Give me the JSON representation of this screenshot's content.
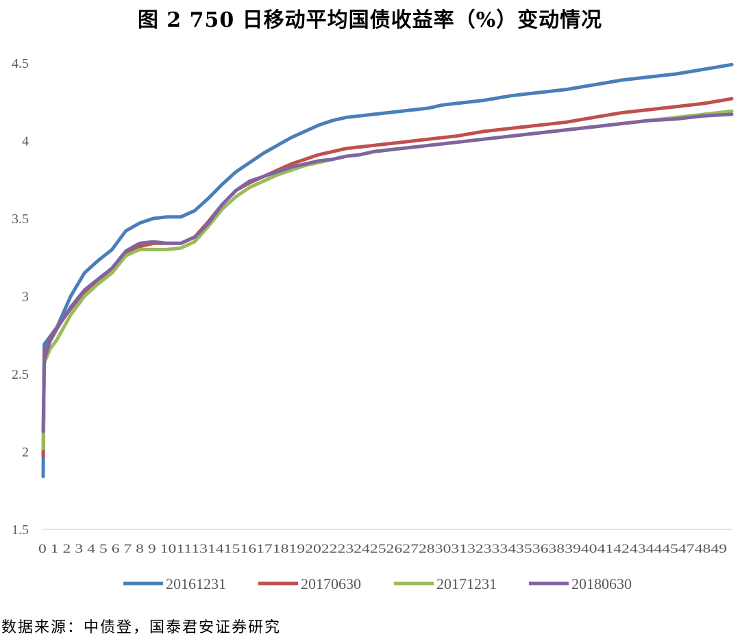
{
  "title": "图 2 750 日移动平均国债收益率（%）变动情况",
  "source": "数据来源：中债登，国泰君安证券研究",
  "chart_data": {
    "type": "line",
    "ylim": [
      1.5,
      4.5
    ],
    "yticks": [
      "4.5",
      "4",
      "3.5",
      "3",
      "2.5",
      "2",
      "1.5"
    ],
    "xlim": [
      0,
      50
    ],
    "xtick_text": "0 1 2 3 4 5 6 7 8 9 1011131415161718192022232425262728303132333435363839404142434445474849",
    "legend_placement": "bottom",
    "grid": false,
    "series": [
      {
        "name": "20161231",
        "color": "#4a7ebb",
        "points": [
          [
            0,
            1.84
          ],
          [
            0.08,
            2.69
          ],
          [
            0.5,
            2.74
          ],
          [
            1,
            2.8
          ],
          [
            2,
            3.0
          ],
          [
            3,
            3.15
          ],
          [
            4,
            3.23
          ],
          [
            5,
            3.3
          ],
          [
            6,
            3.42
          ],
          [
            7,
            3.47
          ],
          [
            8,
            3.5
          ],
          [
            9,
            3.51
          ],
          [
            10,
            3.51
          ],
          [
            11,
            3.55
          ],
          [
            12,
            3.63
          ],
          [
            13,
            3.72
          ],
          [
            14,
            3.8
          ],
          [
            15,
            3.86
          ],
          [
            16,
            3.92
          ],
          [
            17,
            3.97
          ],
          [
            18,
            4.02
          ],
          [
            19,
            4.06
          ],
          [
            20,
            4.1
          ],
          [
            21,
            4.13
          ],
          [
            22,
            4.15
          ],
          [
            23,
            4.16
          ],
          [
            24,
            4.17
          ],
          [
            25,
            4.18
          ],
          [
            26,
            4.19
          ],
          [
            27,
            4.2
          ],
          [
            28,
            4.21
          ],
          [
            29,
            4.23
          ],
          [
            30,
            4.24
          ],
          [
            32,
            4.26
          ],
          [
            34,
            4.29
          ],
          [
            36,
            4.31
          ],
          [
            38,
            4.33
          ],
          [
            40,
            4.36
          ],
          [
            42,
            4.39
          ],
          [
            44,
            4.41
          ],
          [
            46,
            4.43
          ],
          [
            48,
            4.46
          ],
          [
            50,
            4.49
          ]
        ]
      },
      {
        "name": "20170630",
        "color": "#c0504d",
        "points": [
          [
            0,
            1.97
          ],
          [
            0.08,
            2.62
          ],
          [
            0.5,
            2.72
          ],
          [
            1,
            2.8
          ],
          [
            2,
            2.92
          ],
          [
            3,
            3.03
          ],
          [
            4,
            3.1
          ],
          [
            5,
            3.17
          ],
          [
            6,
            3.28
          ],
          [
            7,
            3.32
          ],
          [
            8,
            3.34
          ],
          [
            9,
            3.34
          ],
          [
            10,
            3.34
          ],
          [
            11,
            3.38
          ],
          [
            12,
            3.48
          ],
          [
            13,
            3.59
          ],
          [
            14,
            3.68
          ],
          [
            15,
            3.73
          ],
          [
            16,
            3.77
          ],
          [
            17,
            3.81
          ],
          [
            18,
            3.85
          ],
          [
            19,
            3.88
          ],
          [
            20,
            3.91
          ],
          [
            21,
            3.93
          ],
          [
            22,
            3.95
          ],
          [
            23,
            3.96
          ],
          [
            24,
            3.97
          ],
          [
            25,
            3.98
          ],
          [
            26,
            3.99
          ],
          [
            27,
            4.0
          ],
          [
            28,
            4.01
          ],
          [
            30,
            4.03
          ],
          [
            32,
            4.06
          ],
          [
            34,
            4.08
          ],
          [
            36,
            4.1
          ],
          [
            38,
            4.12
          ],
          [
            40,
            4.15
          ],
          [
            42,
            4.18
          ],
          [
            44,
            4.2
          ],
          [
            46,
            4.22
          ],
          [
            48,
            4.24
          ],
          [
            50,
            4.27
          ]
        ]
      },
      {
        "name": "20171231",
        "color": "#9bbb59",
        "points": [
          [
            0,
            2.02
          ],
          [
            0.08,
            2.57
          ],
          [
            0.5,
            2.66
          ],
          [
            1,
            2.72
          ],
          [
            2,
            2.88
          ],
          [
            3,
            3.0
          ],
          [
            4,
            3.08
          ],
          [
            5,
            3.15
          ],
          [
            6,
            3.26
          ],
          [
            7,
            3.3
          ],
          [
            8,
            3.3
          ],
          [
            9,
            3.3
          ],
          [
            10,
            3.31
          ],
          [
            11,
            3.35
          ],
          [
            12,
            3.45
          ],
          [
            13,
            3.56
          ],
          [
            14,
            3.64
          ],
          [
            15,
            3.7
          ],
          [
            16,
            3.74
          ],
          [
            17,
            3.78
          ],
          [
            18,
            3.81
          ],
          [
            19,
            3.84
          ],
          [
            20,
            3.86
          ],
          [
            21,
            3.88
          ],
          [
            22,
            3.9
          ],
          [
            23,
            3.91
          ],
          [
            24,
            3.93
          ],
          [
            25,
            3.94
          ],
          [
            26,
            3.95
          ],
          [
            27,
            3.96
          ],
          [
            28,
            3.97
          ],
          [
            30,
            3.99
          ],
          [
            32,
            4.01
          ],
          [
            34,
            4.03
          ],
          [
            36,
            4.05
          ],
          [
            38,
            4.07
          ],
          [
            40,
            4.09
          ],
          [
            42,
            4.11
          ],
          [
            44,
            4.13
          ],
          [
            46,
            4.15
          ],
          [
            48,
            4.17
          ],
          [
            50,
            4.19
          ]
        ]
      },
      {
        "name": "20180630",
        "color": "#8064a2",
        "points": [
          [
            0,
            2.13
          ],
          [
            0.08,
            2.59
          ],
          [
            0.5,
            2.71
          ],
          [
            1,
            2.79
          ],
          [
            2,
            2.93
          ],
          [
            3,
            3.04
          ],
          [
            4,
            3.11
          ],
          [
            5,
            3.18
          ],
          [
            6,
            3.29
          ],
          [
            7,
            3.34
          ],
          [
            8,
            3.35
          ],
          [
            9,
            3.34
          ],
          [
            10,
            3.34
          ],
          [
            11,
            3.38
          ],
          [
            12,
            3.47
          ],
          [
            13,
            3.59
          ],
          [
            14,
            3.68
          ],
          [
            15,
            3.74
          ],
          [
            16,
            3.77
          ],
          [
            17,
            3.8
          ],
          [
            18,
            3.83
          ],
          [
            19,
            3.85
          ],
          [
            20,
            3.87
          ],
          [
            21,
            3.88
          ],
          [
            22,
            3.9
          ],
          [
            23,
            3.91
          ],
          [
            24,
            3.93
          ],
          [
            25,
            3.94
          ],
          [
            26,
            3.95
          ],
          [
            27,
            3.96
          ],
          [
            28,
            3.97
          ],
          [
            30,
            3.99
          ],
          [
            32,
            4.01
          ],
          [
            34,
            4.03
          ],
          [
            36,
            4.05
          ],
          [
            38,
            4.07
          ],
          [
            40,
            4.09
          ],
          [
            42,
            4.11
          ],
          [
            44,
            4.13
          ],
          [
            46,
            4.14
          ],
          [
            48,
            4.16
          ],
          [
            50,
            4.17
          ]
        ]
      }
    ]
  }
}
